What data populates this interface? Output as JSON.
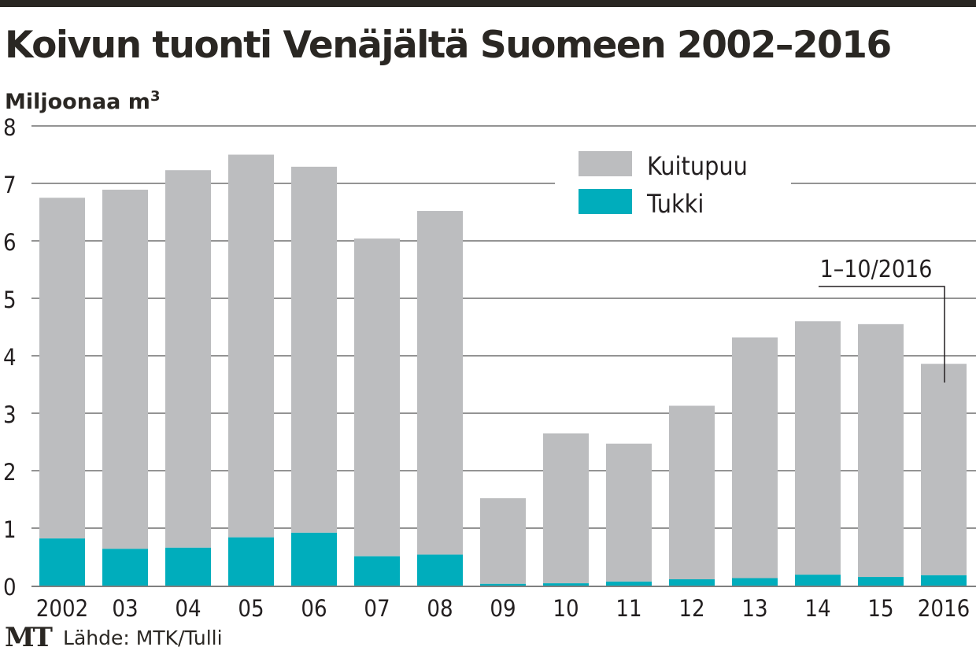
{
  "title": "Koivun tuonti Venäjältä Suomeen 2002–2016",
  "unit_label": "Miljoonaa m",
  "unit_sup": "3",
  "logo": "MT",
  "source": "Lähde: MTK/Tulli",
  "annotation": "1–10/2016",
  "colors": {
    "kuitupuu": "#bcbdbf",
    "tukki": "#00adbc",
    "grid": "#555555",
    "text": "#231f20"
  },
  "chart_data": {
    "type": "bar",
    "stacked": true,
    "categories": [
      "2002",
      "03",
      "04",
      "05",
      "06",
      "07",
      "08",
      "09",
      "10",
      "11",
      "12",
      "13",
      "14",
      "15",
      "2016"
    ],
    "series": [
      {
        "name": "Tukki",
        "values": [
          0.82,
          0.64,
          0.66,
          0.84,
          0.92,
          0.51,
          0.54,
          0.03,
          0.04,
          0.07,
          0.11,
          0.13,
          0.19,
          0.15,
          0.18
        ]
      },
      {
        "name": "Kuitupuu",
        "values": [
          5.93,
          6.25,
          6.57,
          6.66,
          6.37,
          5.53,
          5.98,
          1.49,
          2.61,
          2.4,
          3.02,
          4.19,
          4.41,
          4.4,
          3.68
        ]
      }
    ],
    "legend": [
      "Kuitupuu",
      "Tukki"
    ],
    "legend_position": "top-right",
    "ylim": [
      0,
      8
    ],
    "yticks": [
      "0",
      "1",
      "2",
      "3",
      "4",
      "5",
      "6",
      "7",
      "8"
    ],
    "grid": true
  }
}
